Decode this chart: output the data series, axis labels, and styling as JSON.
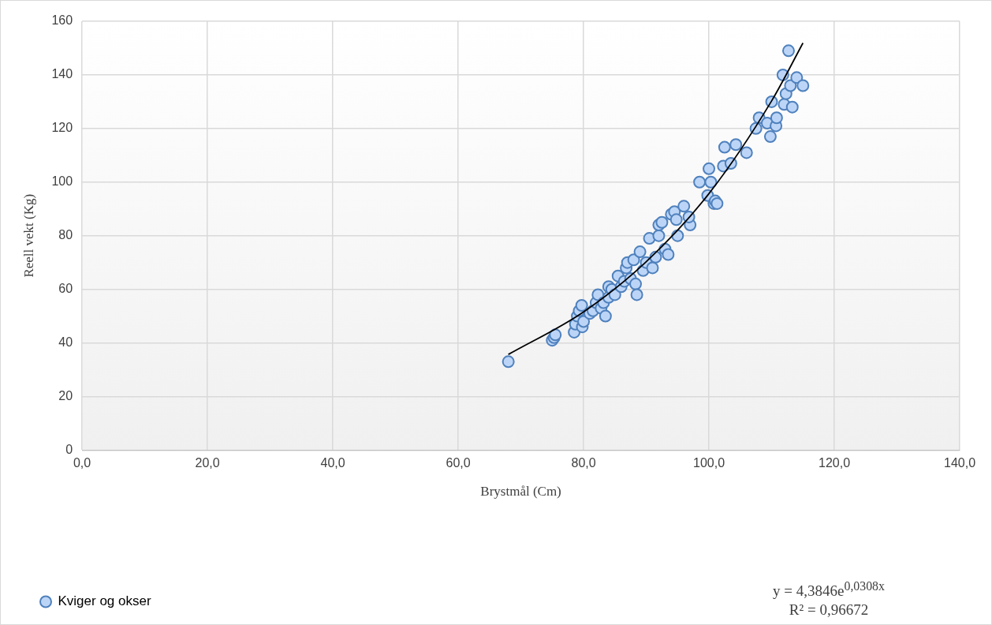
{
  "chart_data": {
    "type": "scatter",
    "xlabel": "Brystmål (Cm)",
    "ylabel": "Reell vekt (Kg)",
    "xlim": [
      0,
      140
    ],
    "xticks": [
      {
        "value": 0,
        "label": "0,0"
      },
      {
        "value": 20,
        "label": "20,0"
      },
      {
        "value": 40,
        "label": "40,0"
      },
      {
        "value": 60,
        "label": "60,0"
      },
      {
        "value": 80,
        "label": "80,0"
      },
      {
        "value": 100,
        "label": "100,0"
      },
      {
        "value": 120,
        "label": "120,0"
      },
      {
        "value": 140,
        "label": "140,0"
      }
    ],
    "ylim": [
      0,
      160
    ],
    "yticks": [
      0,
      20,
      40,
      60,
      80,
      100,
      120,
      140,
      160
    ],
    "grid": true,
    "legend": "bottom left",
    "marker": "circle",
    "annotations": [
      "y = 4,3846e$^{0,0308x}$",
      "R² = 0,96672"
    ],
    "series": [
      {
        "name": "Kviger og okser",
        "color": "#4f81bd",
        "x": [
          68,
          75,
          75.3,
          75.5,
          78.5,
          78.7,
          79,
          79.3,
          79.7,
          79.8,
          80,
          81,
          81.5,
          82,
          82.3,
          82.8,
          83.2,
          83.5,
          84,
          84,
          84.5,
          85,
          85.5,
          86,
          86.5,
          86.8,
          87,
          87.5,
          88,
          88.3,
          88.5,
          89,
          89.5,
          90,
          90.5,
          91,
          91.5,
          92,
          92,
          92.5,
          93,
          93.5,
          94,
          94.5,
          94.8,
          95,
          96,
          97,
          96.8,
          98.5,
          99.8,
          100,
          100.3,
          100.8,
          101,
          101.3,
          102.3,
          102.5,
          103.5,
          104.3,
          106,
          107.5,
          108,
          109.3,
          109.8,
          110,
          110.7,
          110.8,
          111.8,
          112,
          112.3,
          112.7,
          113,
          113.3,
          114,
          115
        ],
        "values": [
          33,
          41,
          42,
          43,
          44,
          47,
          50,
          52,
          54,
          46,
          48,
          51,
          52,
          55,
          58,
          53,
          55,
          50,
          57,
          61,
          60,
          58,
          65,
          61,
          63,
          68,
          70,
          64,
          71,
          62,
          58,
          74,
          67,
          70,
          79,
          68,
          72,
          80,
          84,
          85,
          75,
          73,
          88,
          89,
          86,
          80,
          91,
          84,
          87,
          100,
          95,
          105,
          100,
          92,
          93,
          92,
          106,
          113,
          107,
          114,
          111,
          120,
          124,
          122,
          117,
          130,
          121,
          124,
          140,
          129,
          133,
          149,
          136,
          128,
          139,
          136
        ]
      },
      {
        "type": "line",
        "color": "#000000",
        "marker": "none",
        "x": [
          68,
          80,
          90,
          100,
          110,
          115
        ],
        "values": [
          35.7,
          51.6,
          70.3,
          95.7,
          130.3,
          151.9
        ]
      }
    ]
  }
}
